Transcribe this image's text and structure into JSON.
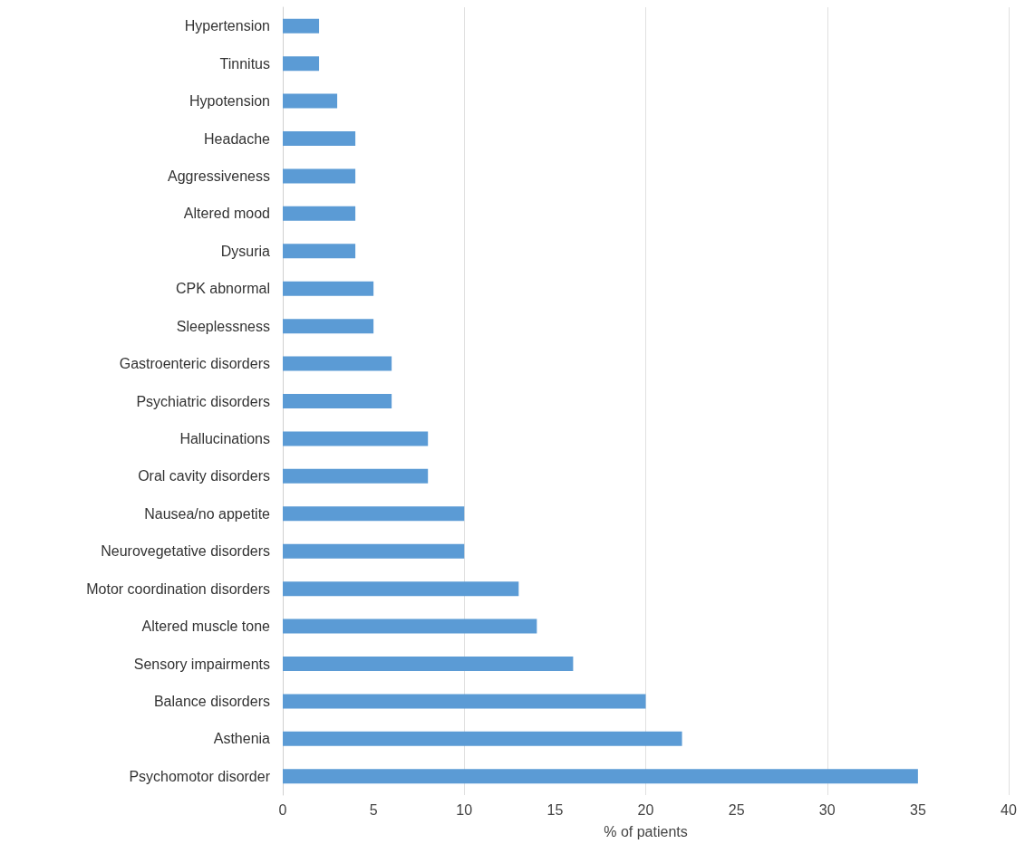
{
  "chart_data": {
    "type": "bar",
    "orientation": "horizontal",
    "xlabel": "% of patients",
    "categories": [
      "Hypertension",
      "Tinnitus",
      "Hypotension",
      "Headache",
      "Aggressiveness",
      "Altered mood",
      "Dysuria",
      "CPK abnormal",
      "Sleeplessness",
      "Gastroenteric disorders",
      "Psychiatric disorders",
      "Hallucinations",
      "Oral cavity disorders",
      "Nausea/no appetite",
      "Neurovegetative disorders",
      "Motor coordination disorders",
      "Altered muscle tone",
      "Sensory impairments",
      "Balance disorders",
      "Asthenia",
      "Psychomotor disorder"
    ],
    "values": [
      2,
      2,
      3,
      4,
      4,
      4,
      4,
      5,
      5,
      6,
      6,
      8,
      8,
      10,
      10,
      13,
      14,
      16,
      20,
      22,
      35
    ],
    "color": "#5b9bd5",
    "xlim": [
      0,
      40
    ],
    "xticks": [
      0,
      5,
      10,
      15,
      20,
      25,
      30,
      35,
      40
    ],
    "grid": "x"
  }
}
